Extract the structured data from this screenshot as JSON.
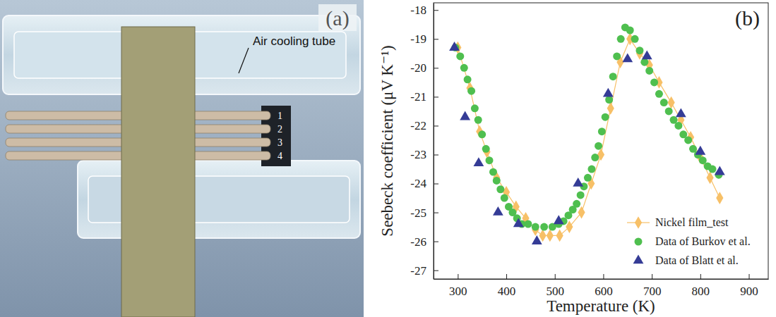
{
  "photo": {
    "panel_label": "(a)",
    "annotation": "Air cooling tube",
    "wire_labels": [
      "1",
      "2",
      "3",
      "4"
    ]
  },
  "chart_data": {
    "type": "scatter",
    "panel_label": "(b)",
    "x_label": "Temperature (K)",
    "y_label": "Seebeck coefficient (μV K⁻¹)",
    "xlim": [
      250,
      940
    ],
    "xticks": [
      300,
      400,
      500,
      600,
      700,
      800,
      900
    ],
    "ylim": [
      -27.3,
      -17.75
    ],
    "yticks": [
      -18,
      -19,
      -20,
      -21,
      -22,
      -23,
      -24,
      -25,
      -26,
      -27
    ],
    "legend": "lower right",
    "grid": false,
    "series": [
      {
        "name": "Nickel film_test",
        "color": "#f7c067",
        "marker": "diamond",
        "line_style": "solid",
        "x": [
          300,
          325,
          345,
          360,
          380,
          400,
          420,
          440,
          460,
          475,
          490,
          510,
          530,
          555,
          575,
          595,
          615,
          635,
          655,
          675,
          695,
          715,
          740,
          760,
          780,
          800,
          820,
          840
        ],
        "values": [
          -19.3,
          -20.7,
          -22.2,
          -22.9,
          -23.8,
          -24.3,
          -24.8,
          -25.2,
          -25.6,
          -25.8,
          -25.8,
          -25.8,
          -25.5,
          -25.0,
          -24.0,
          -23.0,
          -21.4,
          -19.8,
          -19.0,
          -19.5,
          -19.9,
          -20.5,
          -21.2,
          -21.8,
          -22.4,
          -23.1,
          -23.8,
          -24.5
        ]
      },
      {
        "name": "Data of Burkov et al.",
        "color": "#4fbf4f",
        "marker": "circle",
        "line_style": "none",
        "x": [
          295,
          305,
          313,
          320,
          328,
          335,
          342,
          350,
          358,
          365,
          373,
          380,
          388,
          396,
          405,
          413,
          422,
          432,
          445,
          460,
          478,
          495,
          508,
          518,
          528,
          537,
          545,
          553,
          560,
          568,
          576,
          583,
          590,
          597,
          604,
          612,
          620,
          628,
          636,
          645,
          655,
          665,
          675,
          685,
          695,
          705,
          715,
          725,
          735,
          745,
          755,
          765,
          775,
          785,
          795,
          805,
          815,
          825,
          838
        ],
        "values": [
          -19.3,
          -19.6,
          -20.0,
          -20.4,
          -20.8,
          -21.4,
          -21.8,
          -22.3,
          -22.8,
          -23.2,
          -23.6,
          -23.9,
          -24.2,
          -24.5,
          -24.8,
          -25.0,
          -25.2,
          -25.4,
          -25.4,
          -25.5,
          -25.5,
          -25.5,
          -25.4,
          -25.3,
          -25.1,
          -24.9,
          -24.7,
          -24.4,
          -24.1,
          -23.8,
          -23.5,
          -23.1,
          -22.7,
          -22.2,
          -21.7,
          -21.1,
          -20.3,
          -19.6,
          -19.0,
          -18.6,
          -18.7,
          -19.0,
          -19.4,
          -19.8,
          -20.1,
          -20.5,
          -20.9,
          -21.2,
          -21.5,
          -21.8,
          -22.0,
          -22.3,
          -22.5,
          -22.8,
          -23.0,
          -23.2,
          -23.4,
          -23.5,
          -23.7
        ]
      },
      {
        "name": "Data of Blatt et al.",
        "color": "#353c96",
        "marker": "triangle",
        "line_style": "none",
        "x": [
          293,
          315,
          343,
          383,
          425,
          463,
          508,
          548,
          610,
          650,
          690,
          760,
          800,
          840
        ],
        "values": [
          -19.3,
          -21.7,
          -23.3,
          -25.0,
          -25.4,
          -26.0,
          -25.3,
          -24.0,
          -20.9,
          -19.7,
          -19.6,
          -21.6,
          -22.9,
          -23.6
        ]
      }
    ]
  }
}
